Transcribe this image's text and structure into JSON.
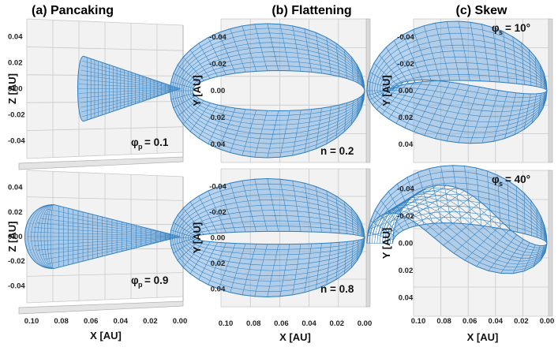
{
  "chart_data": [
    {
      "type": "3d-wireframe",
      "column": "a",
      "title": "(a) Pancaking",
      "view": "X-Z projection",
      "xlabel": "X [AU]",
      "ylabel": "Z [AU]",
      "x_ticks": [
        "0.10",
        "0.08",
        "0.06",
        "0.04",
        "0.02",
        "0.00"
      ],
      "y_ticks": [
        "0.04",
        "0.02",
        "0.00",
        "-0.02",
        "-0.04"
      ],
      "xlim": [
        0.1,
        0.0
      ],
      "ylim": [
        -0.05,
        0.05
      ],
      "panels": [
        {
          "param": "φ",
          "sub": "p",
          "value": "0.1",
          "label": "= 0.1",
          "shape": {
            "x_back": 0.065,
            "x_apex": 0.0,
            "half_height": 0.025,
            "cap_depth": 0.004
          }
        },
        {
          "param": "φ",
          "sub": "p",
          "value": "0.9",
          "label": "= 0.9",
          "shape": {
            "x_back": 0.085,
            "x_apex": 0.0,
            "half_height": 0.026,
            "cap_depth": 0.02
          }
        }
      ]
    },
    {
      "type": "3d-wireframe",
      "column": "b",
      "title": "(b) Flattening",
      "view": "X-Y projection",
      "xlabel": "X [AU]",
      "ylabel": "Y [AU]",
      "x_ticks": [
        "0.10",
        "0.08",
        "0.06",
        "0.04",
        "0.02",
        "0.00"
      ],
      "y_ticks": [
        "-0.04",
        "-0.02",
        "0.00",
        "0.02",
        "0.04"
      ],
      "xlim": [
        0.1,
        0.0
      ],
      "ylim": [
        -0.05,
        0.05
      ],
      "panels": [
        {
          "param": "n",
          "value": "0.2",
          "label": "n = 0.2",
          "shape": {
            "outer_x": 0.07,
            "outer_y": 0.05,
            "inner_x": 0.062,
            "inner_y": 0.015,
            "skew_deg": 0
          }
        },
        {
          "param": "n",
          "value": "0.8",
          "label": "n = 0.8",
          "shape": {
            "outer_x": 0.07,
            "outer_y": 0.046,
            "inner_x": 0.062,
            "inner_y": 0.005,
            "skew_deg": 0
          }
        }
      ]
    },
    {
      "type": "3d-wireframe",
      "column": "c",
      "title": "(c) Skew",
      "view": "X-Y projection",
      "xlabel": "X [AU]",
      "ylabel": "Y [AU]",
      "x_ticks": [
        "0.10",
        "0.08",
        "0.06",
        "0.04",
        "0.02",
        "0.00"
      ],
      "y_ticks": [
        "-0.04",
        "-0.02",
        "0.00",
        "0.02",
        "0.04"
      ],
      "xlim": [
        0.1,
        0.0
      ],
      "ylim": [
        -0.05,
        0.05
      ],
      "panels": [
        {
          "param": "φ",
          "sub": "s",
          "value": "10°",
          "label": "= 10°",
          "shape": {
            "outer_x": 0.07,
            "outer_y": 0.05,
            "inner_x": 0.06,
            "inner_y": 0.006,
            "skew_deg": 10
          }
        },
        {
          "param": "φ",
          "sub": "s",
          "value": "40°",
          "label": "= 40°",
          "shape": {
            "outer_x": 0.07,
            "outer_y": 0.05,
            "inner_x": 0.06,
            "inner_y": 0.008,
            "skew_deg": 40
          }
        }
      ]
    }
  ],
  "colors": {
    "mesh": "#2f7fc1",
    "mesh_fill": "#6fa8dc",
    "grid": "#c8c8c8",
    "pane": "#f2f2f2",
    "pane_edge": "#b0b0b0"
  }
}
